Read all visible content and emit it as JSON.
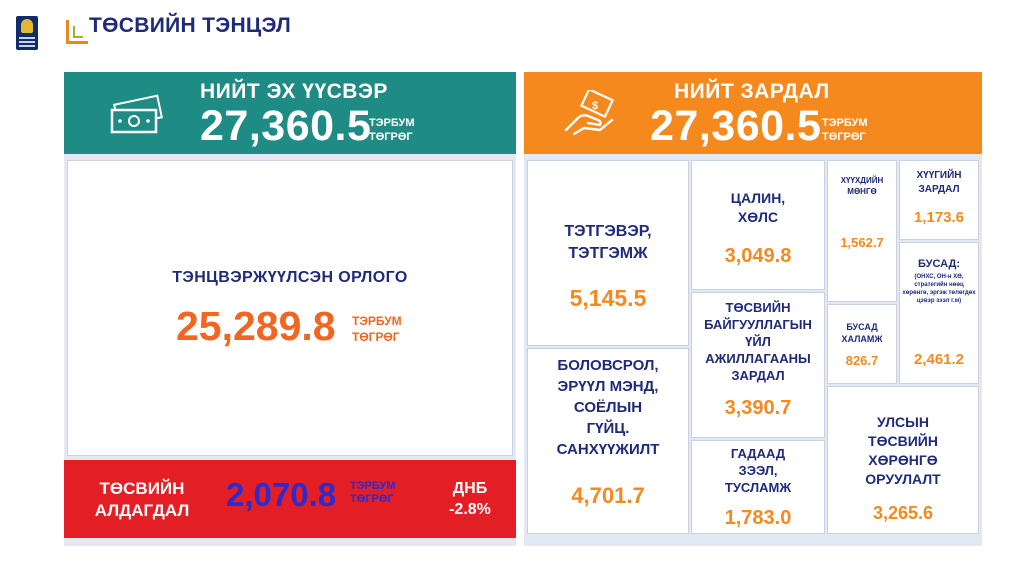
{
  "header": {
    "title": "ТӨСВИЙН ТЭНЦЭЛ",
    "logo_icon": "mongolia-emblem-icon"
  },
  "colors": {
    "teal": "#1e8b84",
    "orange": "#f5891e",
    "red": "#e31e24",
    "navy": "#1f2a7a",
    "value_orange": "#f26522",
    "deficit_blue": "#2d2ad0"
  },
  "revenue": {
    "label": "НИЙТ ЭХ ҮҮСВЭР",
    "value": "27,360.5",
    "unit_line1": "ТЭРБУМ",
    "unit_line2": "ТӨГРӨГ",
    "icon": "money-bills-icon"
  },
  "expense": {
    "label": "НИЙТ ЗАРДАЛ",
    "value": "27,360.5",
    "unit_line1": "ТЭРБУМ",
    "unit_line2": "ТӨГРӨГ",
    "icon": "hand-paying-money-icon"
  },
  "balanced_revenue": {
    "label": "ТЭНЦВЭРЖҮҮЛСЭН ОРЛОГО",
    "value": "25,289.8",
    "unit_line1": "ТЭРБУМ",
    "unit_line2": "ТӨГРӨГ"
  },
  "deficit": {
    "label_line1": "ТӨСВИЙН",
    "label_line2": "АЛДАГДАЛ",
    "value": "2,070.8",
    "unit_line1": "ТЭРБУМ",
    "unit_line2": "ТӨГРӨГ",
    "gdp_label": "ДНБ",
    "gdp_value": "-2.8%"
  },
  "expense_items": {
    "pension": {
      "line1": "ТЭТГЭВЭР,",
      "line2": "ТЭТГЭМЖ",
      "value": "5,145.5"
    },
    "education": {
      "line1": "БОЛОВСРОЛ,",
      "line2": "ЭРҮҮЛ МЭНД,",
      "line3": "СОЁЛЫН",
      "line4": "ГҮЙЦ.",
      "line5": "САНХҮҮЖИЛТ",
      "value": "4,701.7"
    },
    "salary": {
      "line1": "ЦАЛИН,",
      "line2": "ХӨЛС",
      "value": "3,049.8"
    },
    "operations": {
      "line1": "ТӨСВИЙН",
      "line2": "БАЙГУУЛЛАГЫН",
      "line3": "ҮЙЛ",
      "line4": "АЖИЛЛАГААНЫ",
      "line5": "ЗАРДАЛ",
      "value": "3,390.7"
    },
    "loans": {
      "line1": "ГАДААД",
      "line2": "ЗЭЭЛ,",
      "line3": "ТУСЛАМЖ",
      "value": "1,783.0"
    },
    "child_money": {
      "line1": "ХҮҮХДИЙН",
      "line2": "МӨНГӨ",
      "value": "1,562.7"
    },
    "other_benefit": {
      "line1": "БУСАД",
      "line2": "ХАЛАМЖ",
      "value": "826.7"
    },
    "interest": {
      "line1": "ХҮҮГИЙН",
      "line2": "ЗАРДАЛ",
      "value": "1,173.6"
    },
    "other": {
      "line1": "БУСАД:",
      "note": "(ОНХС, ОН-н ХӨ, стратегийн нөөц хөрөнгө, эргэж төлөгдөх цэвэр зээл г.м)",
      "value": "2,461.2"
    },
    "investment": {
      "line1": "УЛСЫН",
      "line2": "ТӨСВИЙН",
      "line3": "ХӨРӨНГӨ",
      "line4": "ОРУУЛАЛТ",
      "value": "3,265.6"
    }
  }
}
